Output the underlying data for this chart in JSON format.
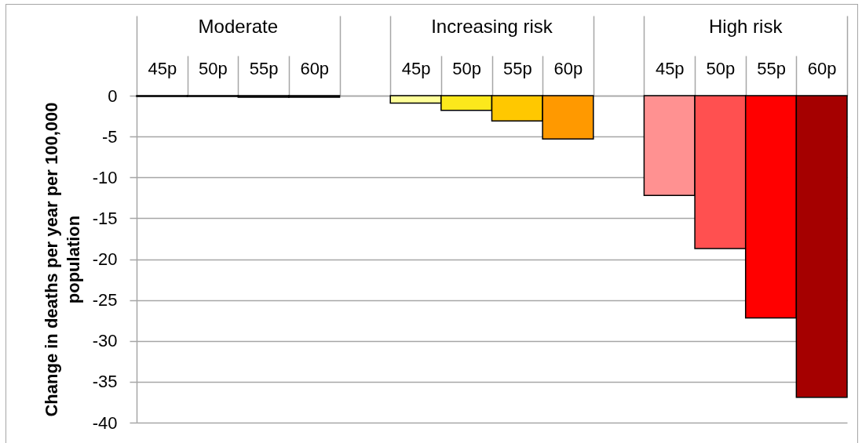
{
  "chart_data": {
    "type": "bar",
    "ylabel": "Change in deaths per year per 100,000 population",
    "categories": [
      "45p",
      "50p",
      "55p",
      "60p",
      null,
      "45p",
      "50p",
      "55p",
      "60p",
      null,
      "45p",
      "50p",
      "55p",
      "60p"
    ],
    "series": [
      {
        "name": "Moderate",
        "colors": [
          "#262626",
          "#262626",
          "#262626",
          "#262626",
          null,
          null,
          null,
          null,
          null,
          null,
          null,
          null,
          null,
          null
        ],
        "values": [
          -0.1,
          -0.1,
          -0.2,
          -0.2,
          null,
          null,
          null,
          null,
          null,
          null,
          null,
          null,
          null,
          null
        ]
      },
      {
        "name": "Increasing risk",
        "colors": [
          null,
          null,
          null,
          null,
          null,
          "#ffff99",
          "#fce81c",
          "#ffc800",
          "#ff9900",
          null,
          null,
          null,
          null,
          null
        ],
        "values": [
          null,
          null,
          null,
          null,
          null,
          -0.9,
          -1.8,
          -3.1,
          -5.3,
          null,
          null,
          null,
          null,
          null
        ]
      },
      {
        "name": "High risk",
        "colors": [
          null,
          null,
          null,
          null,
          null,
          null,
          null,
          null,
          null,
          null,
          "#ff9191",
          "#ff5050",
          "#ff0000",
          "#a50000"
        ],
        "values": [
          null,
          null,
          null,
          null,
          null,
          null,
          null,
          null,
          null,
          null,
          -12.2,
          -18.7,
          -27.2,
          -36.9
        ]
      }
    ],
    "ylim": [
      -40,
      0
    ],
    "yticks": [
      -40,
      -35,
      -30,
      -25,
      -20,
      -15,
      -10,
      -5,
      0
    ],
    "grid": "y"
  }
}
